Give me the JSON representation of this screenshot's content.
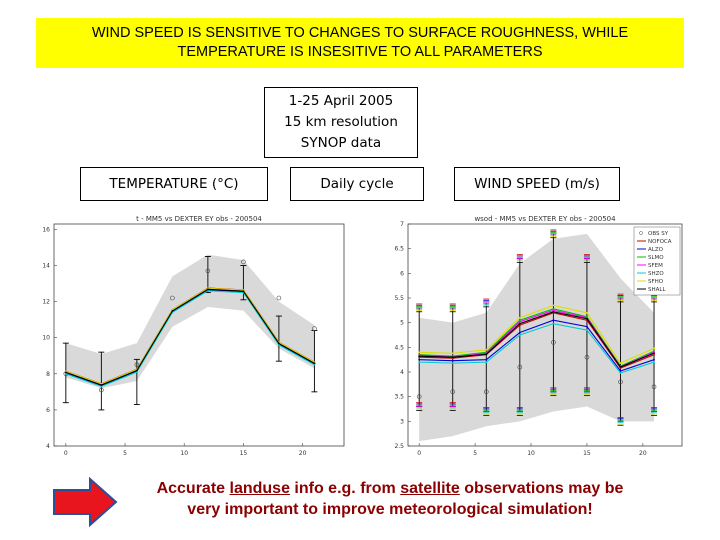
{
  "header": {
    "line1": "WIND SPEED IS SENSITIVE TO CHANGES TO SURFACE ROUGHNESS, WHILE",
    "line2": "TEMPERATURE IS INSESITIVE TO ALL PARAMETERS"
  },
  "info": {
    "line1": "1-25 April 2005",
    "line2": "15 km resolution",
    "line3": "SYNOP data"
  },
  "labels": {
    "temperature": "TEMPERATURE (°C)",
    "daily": "Daily cycle",
    "wind": "WIND SPEED (m/s)"
  },
  "footer": {
    "part1": "Accurate ",
    "landuse": "landuse",
    "part2": " info e.g. from ",
    "satellite": "satellite",
    "part3": " observations may be",
    "line2": "very important to improve meteorological simulation!"
  },
  "colors": {
    "title_bg": "#ffff00",
    "footer_text": "#8b0000",
    "arrow_fill": "#e8141e",
    "arrow_stroke": "#2d4f9a",
    "band": "#d9d9d9"
  },
  "chart_data": [
    {
      "type": "line",
      "title": "t - MM5 vs DEXTER EY obs - 200504",
      "x": [
        0,
        3,
        6,
        9,
        12,
        15,
        18,
        21
      ],
      "xticks": [
        0,
        5,
        10,
        15,
        20
      ],
      "yticks": [
        4,
        6,
        8,
        10,
        12,
        14,
        16
      ],
      "xlim": [
        -1,
        23.5
      ],
      "ylim": [
        4,
        16.3
      ],
      "band_low": [
        7.8,
        7.2,
        7.6,
        10.6,
        11.7,
        11.5,
        9.4,
        8.3
      ],
      "band_high": [
        9.7,
        9.1,
        9.7,
        13.4,
        14.6,
        14.3,
        12.0,
        10.7
      ],
      "obs": [
        8.0,
        7.1,
        8.5,
        12.2,
        13.7,
        14.2,
        12.2,
        10.5
      ],
      "obs_errbar": [
        [
          6.4,
          9.7
        ],
        [
          6.0,
          9.2
        ],
        [
          6.3,
          8.8
        ],
        null,
        [
          12.5,
          14.5
        ],
        [
          12.1,
          14.0
        ],
        [
          8.7,
          11.2
        ],
        [
          7.0,
          10.4
        ]
      ],
      "series": [
        {
          "name": "NOFOCA",
          "color": "#cc0000",
          "values": [
            8.15,
            7.45,
            8.25,
            11.55,
            12.75,
            12.65,
            9.75,
            8.65
          ]
        },
        {
          "name": "ALZO",
          "color": "#0000dd",
          "values": [
            8.05,
            7.35,
            8.15,
            11.45,
            12.65,
            12.55,
            9.65,
            8.55
          ]
        },
        {
          "name": "SLMO",
          "color": "#00bb00",
          "values": [
            8.12,
            7.42,
            8.22,
            11.52,
            12.72,
            12.62,
            9.72,
            8.62
          ]
        },
        {
          "name": "SFEM",
          "color": "#ff00ff",
          "values": [
            8.1,
            7.4,
            8.2,
            11.5,
            12.7,
            12.6,
            9.7,
            8.6
          ]
        },
        {
          "name": "SHZO",
          "color": "#00cccc",
          "values": [
            8.0,
            7.3,
            8.1,
            11.4,
            12.6,
            12.5,
            9.6,
            8.5
          ]
        },
        {
          "name": "SFHO",
          "color": "#dddd00",
          "values": [
            8.14,
            7.44,
            8.24,
            11.54,
            12.74,
            12.64,
            9.74,
            8.64
          ]
        },
        {
          "name": "SHALL",
          "color": "#000000",
          "values": [
            8.08,
            7.38,
            8.18,
            11.48,
            12.68,
            12.58,
            9.68,
            8.58
          ]
        }
      ]
    },
    {
      "type": "line",
      "title": "wsod - MM5 vs DEXTER EY obs - 200504",
      "x": [
        0,
        3,
        6,
        9,
        12,
        15,
        18,
        21
      ],
      "xticks": [
        0,
        5,
        10,
        15,
        20
      ],
      "yticks": [
        2.5,
        3,
        3.5,
        4,
        4.5,
        5,
        5.5,
        6,
        6.5,
        7
      ],
      "xlim": [
        -1,
        23.5
      ],
      "ylim": [
        2.5,
        7
      ],
      "band_low": [
        2.6,
        2.7,
        2.9,
        3.0,
        3.2,
        3.3,
        3.0,
        3.0
      ],
      "band_high": [
        5.1,
        5.0,
        5.2,
        6.2,
        6.7,
        6.8,
        5.9,
        5.2
      ],
      "legend": [
        "OBS SY",
        "NOFOCA",
        "ALZO",
        "SLMO",
        "SFEM",
        "SHZO",
        "SFHO",
        "SHALL"
      ],
      "obs": [
        3.5,
        3.6,
        3.6,
        4.1,
        4.6,
        4.3,
        3.8,
        3.7
      ],
      "obs_errbar": [
        [
          3.3,
          5.3
        ],
        [
          3.3,
          5.3
        ],
        [
          3.2,
          5.4
        ],
        [
          3.2,
          6.3
        ],
        [
          3.6,
          6.8
        ],
        [
          3.6,
          6.3
        ],
        [
          3.0,
          5.5
        ],
        [
          3.2,
          5.5
        ]
      ],
      "series": [
        {
          "name": "NOFOCA",
          "color": "#cc0000",
          "values": [
            4.3,
            4.28,
            4.35,
            4.95,
            5.2,
            5.05,
            4.08,
            4.35
          ]
        },
        {
          "name": "ALZO",
          "color": "#0000dd",
          "values": [
            4.25,
            4.23,
            4.25,
            4.8,
            5.05,
            4.92,
            4.02,
            4.25
          ]
        },
        {
          "name": "SLMO",
          "color": "#00bb00",
          "values": [
            4.35,
            4.32,
            4.4,
            5.05,
            5.28,
            5.12,
            4.12,
            4.42
          ]
        },
        {
          "name": "SFEM",
          "color": "#ff00ff",
          "values": [
            4.34,
            4.3,
            4.38,
            5.02,
            5.25,
            5.1,
            4.1,
            4.4
          ]
        },
        {
          "name": "SHZO",
          "color": "#00cccc",
          "values": [
            4.2,
            4.18,
            4.2,
            4.75,
            4.98,
            4.85,
            3.98,
            4.2
          ]
        },
        {
          "name": "SFHO",
          "color": "#dddd00",
          "values": [
            4.4,
            4.38,
            4.45,
            5.1,
            5.35,
            5.2,
            4.18,
            4.48
          ]
        },
        {
          "name": "SHALL",
          "color": "#000000",
          "values": [
            4.32,
            4.3,
            4.36,
            4.98,
            5.22,
            5.08,
            4.1,
            4.38
          ]
        }
      ]
    }
  ]
}
